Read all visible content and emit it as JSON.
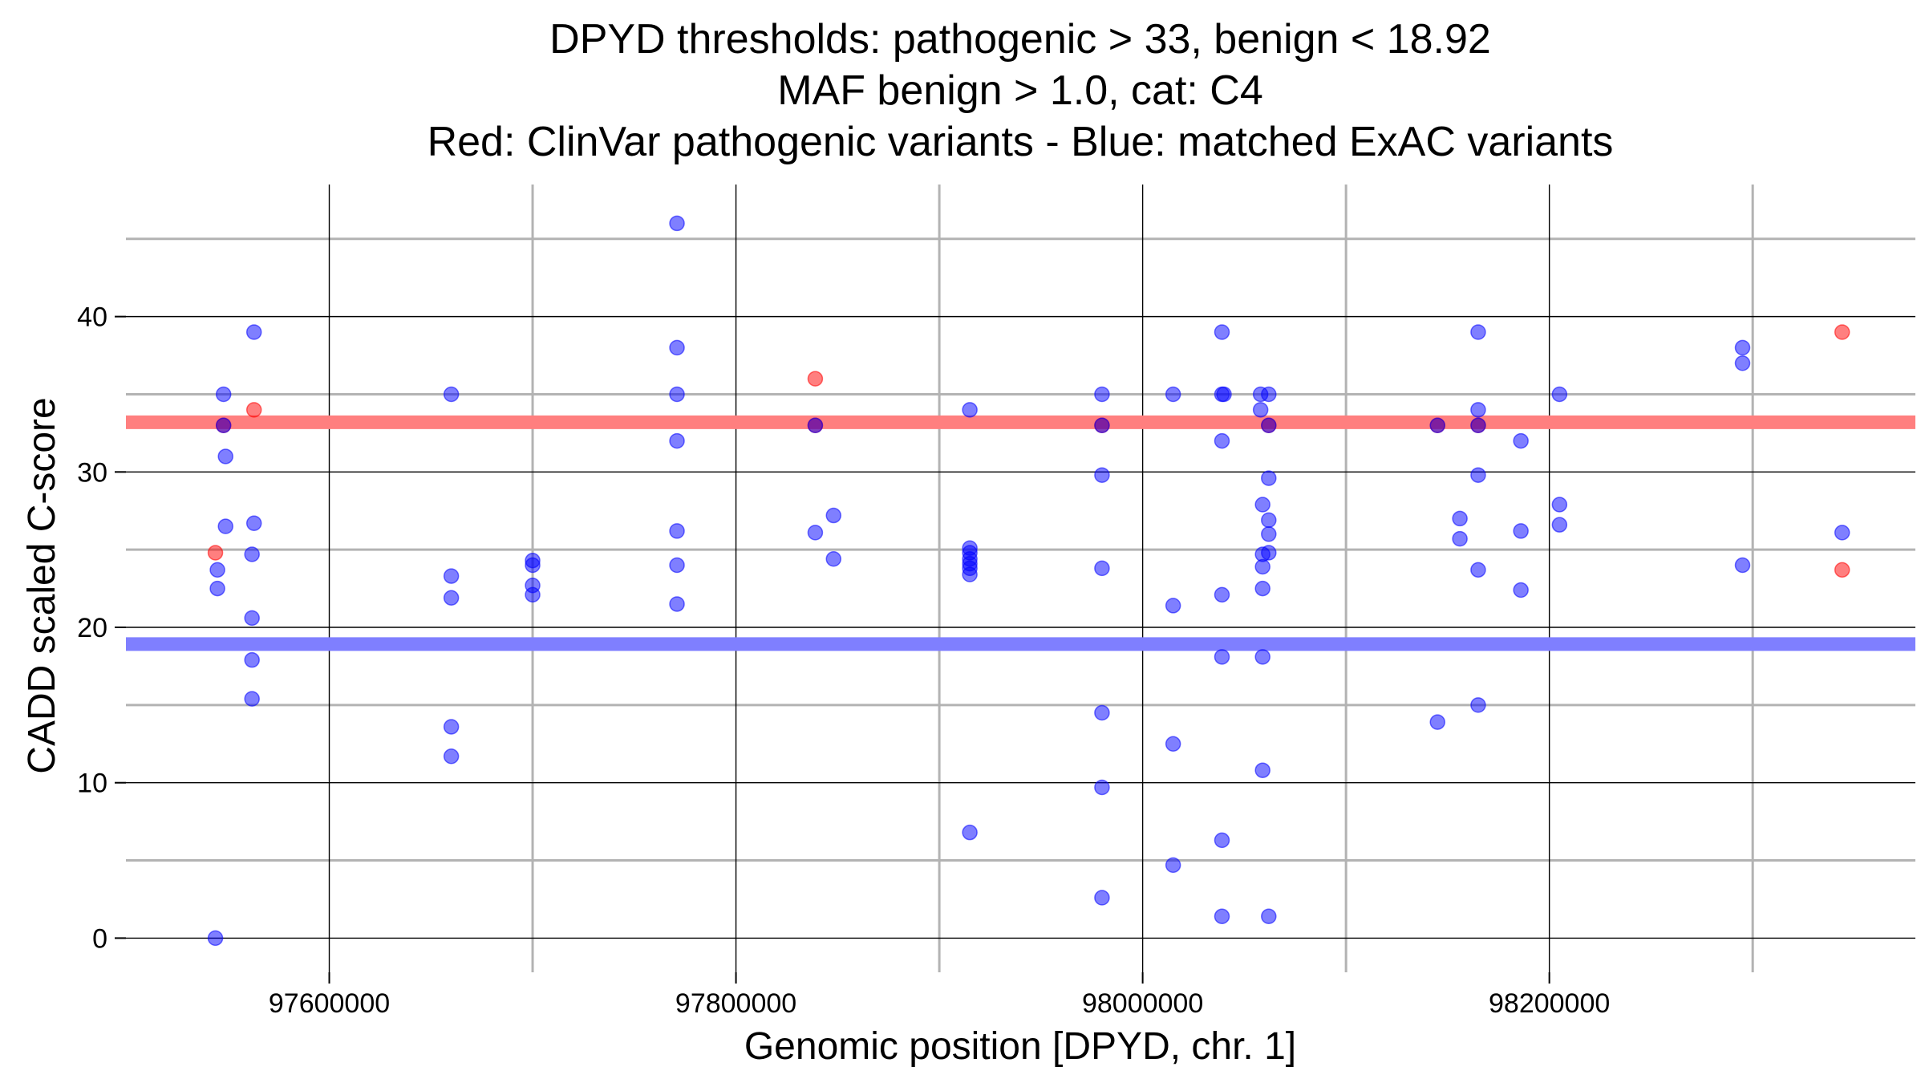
{
  "chart_data": {
    "type": "scatter",
    "title_lines": [
      "DPYD thresholds: pathogenic > 33, benign < 18.92",
      "MAF benign > 1.0, cat: C4",
      "Red: ClinVar pathogenic variants - Blue: matched ExAC variants"
    ],
    "xlabel": "Genomic position [DPYD, chr. 1]",
    "ylabel": "CADD scaled C-score",
    "xlim": [
      97500000,
      98380000
    ],
    "ylim": [
      -2.2,
      48.5
    ],
    "x_major_ticks": [
      97600000,
      97800000,
      98000000,
      98200000
    ],
    "x_tick_labels": [
      "97600000",
      "97800000",
      "98000000",
      "98200000"
    ],
    "x_minor_gridlines": [
      97700000,
      97900000,
      98100000,
      98300000
    ],
    "y_major_ticks": [
      0,
      10,
      20,
      30,
      40
    ],
    "y_tick_labels": [
      "0",
      "10",
      "20",
      "30",
      "40"
    ],
    "y_minor_gridlines": [
      5,
      15,
      25,
      35,
      45
    ],
    "thresholds": [
      {
        "name": "pathogenic",
        "value": 33.2,
        "color": "#ff7f7f"
      },
      {
        "name": "benign",
        "value": 18.92,
        "color": "#7f7fff"
      }
    ],
    "series": [
      {
        "name": "ClinVar pathogenic variants",
        "color": "#ff0000",
        "points": [
          [
            97544000,
            24.8
          ],
          [
            97548000,
            33.0
          ],
          [
            97563000,
            34.0
          ],
          [
            97839000,
            36.0
          ],
          [
            97839000,
            33.0
          ],
          [
            97980000,
            33.0
          ],
          [
            98062000,
            33.0
          ],
          [
            98145000,
            33.0
          ],
          [
            98165000,
            33.0
          ],
          [
            98344000,
            39.0
          ],
          [
            98344000,
            23.7
          ]
        ]
      },
      {
        "name": "matched ExAC variants",
        "color": "#0000ff",
        "points": [
          [
            97548000,
            35.0
          ],
          [
            97548000,
            33.0
          ],
          [
            97549000,
            31.0
          ],
          [
            97549000,
            26.5
          ],
          [
            97545000,
            23.7
          ],
          [
            97545000,
            22.5
          ],
          [
            97544000,
            0.0
          ],
          [
            97563000,
            39.0
          ],
          [
            97563000,
            26.7
          ],
          [
            97562000,
            24.7
          ],
          [
            97562000,
            20.6
          ],
          [
            97562000,
            17.9
          ],
          [
            97562000,
            15.4
          ],
          [
            97660000,
            35.0
          ],
          [
            97660000,
            23.3
          ],
          [
            97660000,
            21.9
          ],
          [
            97660000,
            13.6
          ],
          [
            97660000,
            11.7
          ],
          [
            97700000,
            24.3
          ],
          [
            97700000,
            24.0
          ],
          [
            97700000,
            22.7
          ],
          [
            97700000,
            22.1
          ],
          [
            97771000,
            46.0
          ],
          [
            97771000,
            38.0
          ],
          [
            97771000,
            35.0
          ],
          [
            97771000,
            32.0
          ],
          [
            97771000,
            26.2
          ],
          [
            97771000,
            24.0
          ],
          [
            97771000,
            21.5
          ],
          [
            97839000,
            33.0
          ],
          [
            97839000,
            26.1
          ],
          [
            97848000,
            27.2
          ],
          [
            97848000,
            24.4
          ],
          [
            97915000,
            34.0
          ],
          [
            97915000,
            25.1
          ],
          [
            97915000,
            24.8
          ],
          [
            97915000,
            24.4
          ],
          [
            97915000,
            24.1
          ],
          [
            97915000,
            23.8
          ],
          [
            97915000,
            23.4
          ],
          [
            97915000,
            6.8
          ],
          [
            97980000,
            35.0
          ],
          [
            97980000,
            33.0
          ],
          [
            97980000,
            29.8
          ],
          [
            97980000,
            23.8
          ],
          [
            97980000,
            14.5
          ],
          [
            97980000,
            9.7
          ],
          [
            97980000,
            2.6
          ],
          [
            98015000,
            35.0
          ],
          [
            98015000,
            21.4
          ],
          [
            98015000,
            12.5
          ],
          [
            98015000,
            4.7
          ],
          [
            98039000,
            39.0
          ],
          [
            98039000,
            35.0
          ],
          [
            98040000,
            35.0
          ],
          [
            98039000,
            32.0
          ],
          [
            98039000,
            22.1
          ],
          [
            98039000,
            18.1
          ],
          [
            98039000,
            6.3
          ],
          [
            98039000,
            1.4
          ],
          [
            98058000,
            35.0
          ],
          [
            98062000,
            35.0
          ],
          [
            98058000,
            34.0
          ],
          [
            98062000,
            33.0
          ],
          [
            98062000,
            29.6
          ],
          [
            98059000,
            27.9
          ],
          [
            98062000,
            26.9
          ],
          [
            98062000,
            26.0
          ],
          [
            98059000,
            24.7
          ],
          [
            98062000,
            24.8
          ],
          [
            98059000,
            23.9
          ],
          [
            98059000,
            22.5
          ],
          [
            98059000,
            18.1
          ],
          [
            98059000,
            10.8
          ],
          [
            98062000,
            1.4
          ],
          [
            98145000,
            33.0
          ],
          [
            98145000,
            13.9
          ],
          [
            98156000,
            27.0
          ],
          [
            98156000,
            25.7
          ],
          [
            98165000,
            39.0
          ],
          [
            98165000,
            34.0
          ],
          [
            98165000,
            33.0
          ],
          [
            98165000,
            29.8
          ],
          [
            98165000,
            23.7
          ],
          [
            98165000,
            15.0
          ],
          [
            98186000,
            32.0
          ],
          [
            98186000,
            26.2
          ],
          [
            98186000,
            22.4
          ],
          [
            98205000,
            35.0
          ],
          [
            98205000,
            27.9
          ],
          [
            98205000,
            26.6
          ],
          [
            98295000,
            38.0
          ],
          [
            98295000,
            37.0
          ],
          [
            98295000,
            24.0
          ],
          [
            98344000,
            26.1
          ]
        ]
      }
    ]
  }
}
